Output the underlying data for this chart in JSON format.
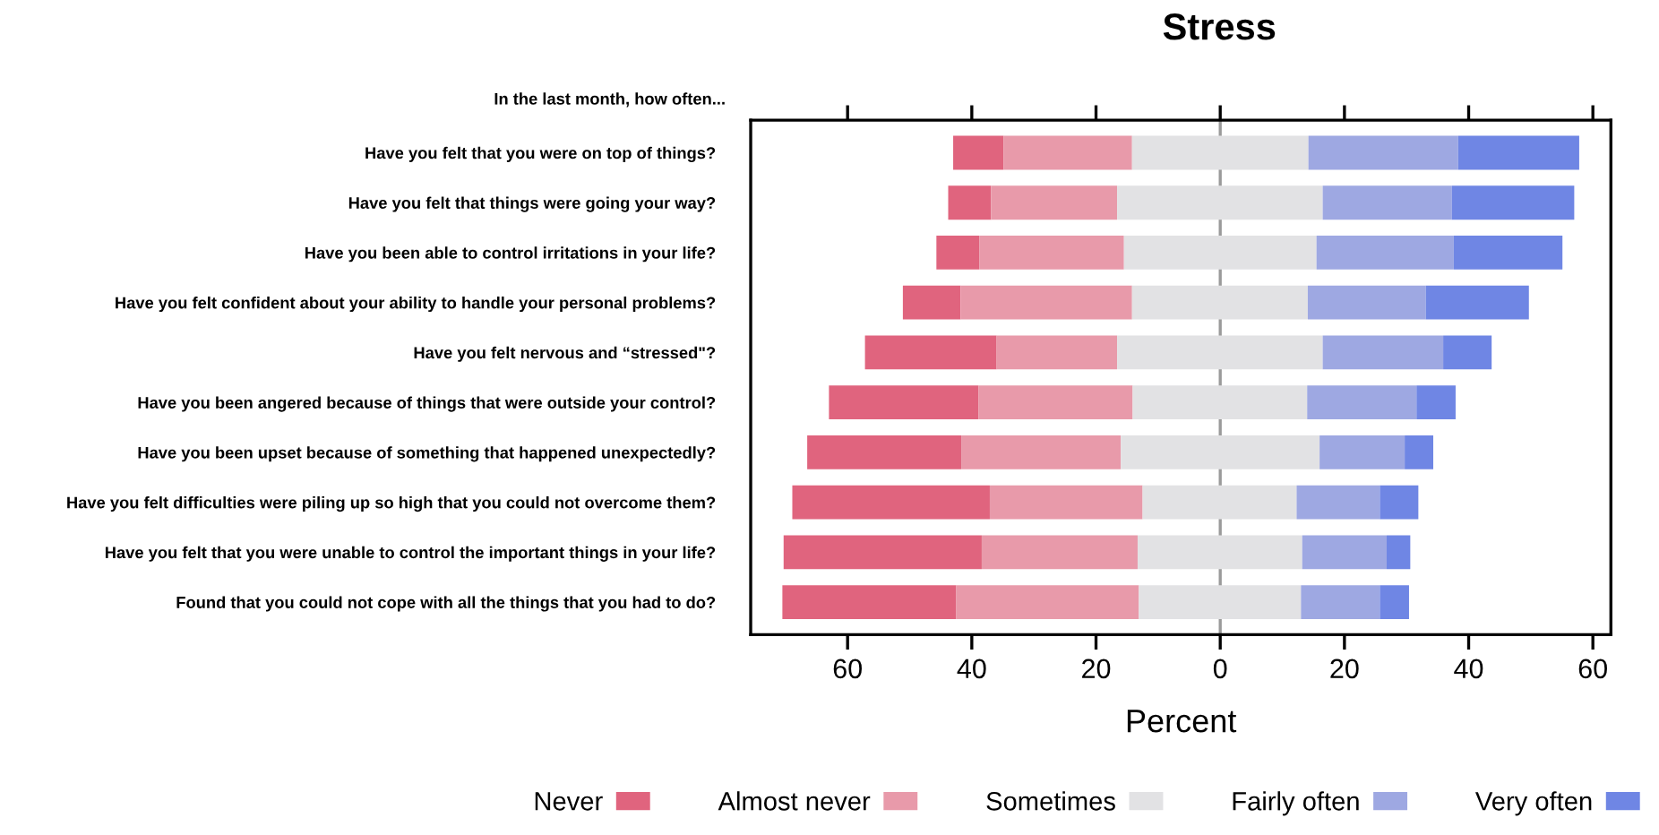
{
  "chart_data": {
    "type": "bar",
    "orientation": "horizontal",
    "title": "Stress",
    "xlabel": "Percent",
    "annotations": [
      "In the last month, how often..."
    ],
    "categories": [
      "Have you felt that you were on top of things?",
      "Have you felt that things were going your way?",
      "Have you been able to control irritations in your life?",
      "Have you felt confident about your ability to handle your personal problems?",
      "Have you felt nervous and “stressed\"?",
      "Have you been angered because of things that were outside your control?",
      "Have you been upset because of something that happened unexpectedly?",
      "Have you felt difficulties were piling up so high that you could not overcome them?",
      "Have you felt that you were unable to control the important things in your life?",
      "Found that you could not cope with all the things that you had to do?"
    ],
    "series": [
      {
        "name": "Never",
        "color": "#e0647e",
        "base": [
          -43.0,
          -43.8,
          -45.7,
          -51.1,
          -57.2,
          -63.0,
          -66.5,
          -68.9,
          -70.3,
          -70.5
        ],
        "values": [
          8.1,
          6.9,
          6.9,
          9.3,
          21.2,
          24.1,
          24.8,
          31.8,
          31.9,
          28.0
        ]
      },
      {
        "name": "Almost never",
        "color": "#e89aaa",
        "base": [
          -34.9,
          -36.9,
          -38.8,
          -41.8,
          -36.0,
          -38.9,
          -41.7,
          -37.1,
          -38.4,
          -42.5
        ],
        "values": [
          20.7,
          20.3,
          23.3,
          27.6,
          19.4,
          24.8,
          25.7,
          24.6,
          25.1,
          29.4
        ]
      },
      {
        "name": "Sometimes",
        "color": "#e2e2e4",
        "base": [
          -14.2,
          -16.6,
          -15.5,
          -14.2,
          -16.6,
          -14.1,
          -16.0,
          -12.5,
          -13.3,
          -13.1
        ],
        "values": [
          28.4,
          33.1,
          31.0,
          28.3,
          33.1,
          28.1,
          32.0,
          24.8,
          26.5,
          26.1
        ]
      },
      {
        "name": "Fairly often",
        "color": "#9ea8e2",
        "base": [
          14.2,
          16.5,
          15.5,
          14.1,
          16.5,
          14.0,
          16.0,
          12.3,
          13.2,
          13.0
        ],
        "values": [
          24.1,
          20.8,
          22.1,
          19.0,
          19.4,
          17.6,
          13.7,
          13.4,
          13.6,
          12.7
        ]
      },
      {
        "name": "Very often",
        "color": "#6f86e4",
        "base": [
          38.3,
          37.3,
          37.6,
          33.1,
          35.9,
          31.6,
          29.7,
          25.7,
          26.8,
          25.7
        ],
        "values": [
          19.5,
          19.7,
          17.5,
          16.6,
          7.8,
          6.3,
          4.6,
          6.2,
          3.8,
          4.7
        ]
      }
    ],
    "xlim": [
      -75.6,
      62.9
    ],
    "xticks": [
      {
        "value": -60,
        "label": "60"
      },
      {
        "value": -40,
        "label": "40"
      },
      {
        "value": -20,
        "label": "20"
      },
      0,
      20,
      40,
      60
    ],
    "ref_lines": [
      {
        "axis": "x",
        "value": 0,
        "color": "#9a9a9a"
      }
    ],
    "grid": false,
    "legend": "bottom"
  }
}
